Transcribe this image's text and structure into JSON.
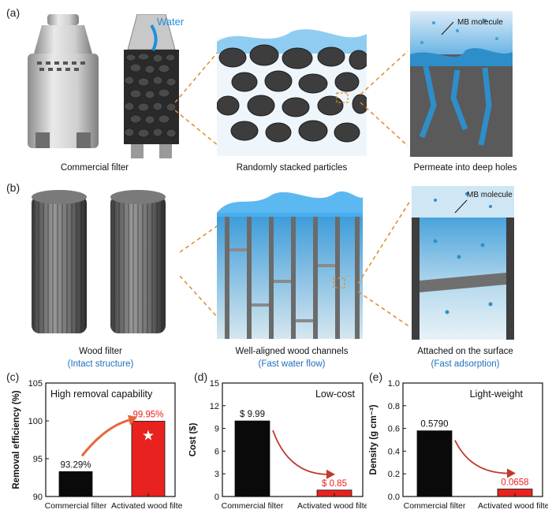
{
  "row_a": {
    "label": "(a)",
    "water_label": "Water",
    "caption_left": "Commercial filter",
    "caption_mid": "Randomly stacked particles",
    "caption_right": "Permeate into deep holes",
    "mb_label": "MB molecule"
  },
  "row_b": {
    "label": "(b)",
    "caption_left": "Wood filter",
    "caption_left_sub": "(Intact structure)",
    "caption_mid": "Well-aligned wood channels",
    "caption_mid_sub": "(Fast water flow)",
    "caption_right": "Attached on the surface",
    "caption_right_sub": "(Fast adsorption)",
    "mb_label": "MB molecule"
  },
  "colors": {
    "black_bar": "#0a0a0a",
    "red_bar": "#e8231f",
    "arrow_orange": "#e8663a",
    "blue_text": "#1f6fc0",
    "water_blue": "#3a9ad9",
    "dashed_orange": "#e08a2a"
  },
  "chart_data": [
    {
      "panel": "(c)",
      "type": "bar",
      "title": "High removal capability",
      "ylabel": "Removal efficiency (%)",
      "categories": [
        "Commercial filter",
        "Activated wood filter"
      ],
      "values": [
        93.29,
        99.95
      ],
      "value_labels": [
        "93.29%",
        "99.95%"
      ],
      "ylim": [
        90,
        105
      ],
      "yticks": [
        "90",
        "95",
        "100",
        "105"
      ],
      "star_on": "Activated wood filter"
    },
    {
      "panel": "(d)",
      "type": "bar",
      "title": "Low-cost",
      "ylabel": "Cost ($)",
      "categories": [
        "Commercial filter",
        "Activated wood filter"
      ],
      "values": [
        9.99,
        0.85
      ],
      "value_labels": [
        "$ 9.99",
        "$ 0.85"
      ],
      "ylim": [
        0,
        15
      ],
      "yticks": [
        "0",
        "3",
        "6",
        "9",
        "12",
        "15"
      ]
    },
    {
      "panel": "(e)",
      "type": "bar",
      "title": "Light-weight",
      "ylabel": "Density (g cm⁻³)",
      "categories": [
        "Commercial filter",
        "Activated wood filter"
      ],
      "values": [
        0.579,
        0.0658
      ],
      "value_labels": [
        "0.5790",
        "0.0658"
      ],
      "ylim": [
        0,
        1.0
      ],
      "yticks": [
        "0.0",
        "0.2",
        "0.4",
        "0.6",
        "0.8",
        "1.0"
      ]
    }
  ]
}
